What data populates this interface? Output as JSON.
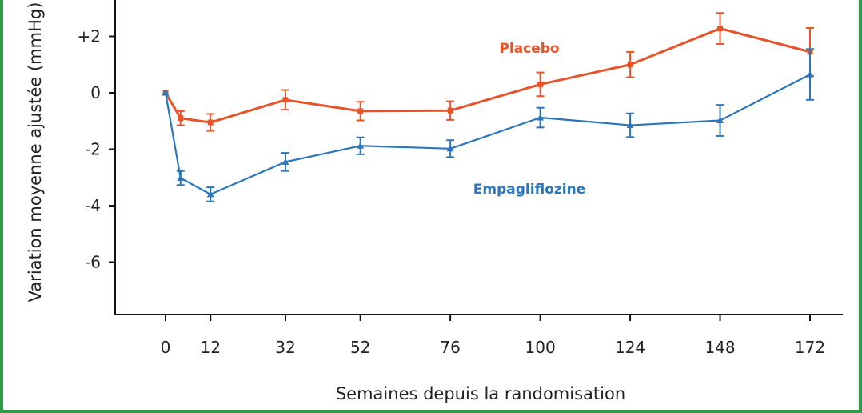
{
  "colors": {
    "frame": "#2e9b48",
    "placebo": "#e8542a",
    "empagliflozin": "#2a77bb",
    "axis": "#111111"
  },
  "chart_data": {
    "type": "line",
    "title": "",
    "xlabel": "Semaines depuis la randomisation",
    "ylabel": "Variation moyenne ajustée (mmHg)",
    "xlim": [
      -10,
      180
    ],
    "ylim": [
      -7.8,
      3.3
    ],
    "x_ticks": [
      0,
      12,
      32,
      52,
      76,
      100,
      124,
      148,
      172
    ],
    "x_tick_labels": [
      "0",
      "12",
      "32",
      "52",
      "76",
      "100",
      "124",
      "148",
      "172"
    ],
    "y_ticks": [
      2,
      0,
      -2,
      -4,
      -6
    ],
    "y_tick_labels": [
      "+2",
      "0",
      "-2",
      "-4",
      "-6"
    ],
    "series": [
      {
        "name": "Placebo",
        "color": "#e8542a",
        "marker": "square",
        "x": [
          0,
          4,
          12,
          32,
          52,
          76,
          100,
          124,
          148,
          172
        ],
        "y": [
          0,
          -0.9,
          -1.05,
          -0.25,
          -0.65,
          -0.63,
          0.3,
          1.0,
          2.28,
          1.45
        ],
        "err": [
          0,
          0.25,
          0.3,
          0.35,
          0.33,
          0.33,
          0.42,
          0.45,
          0.55,
          0.85
        ]
      },
      {
        "name": "Empagliflozine",
        "color": "#2a77bb",
        "marker": "triangle",
        "x": [
          0,
          4,
          12,
          32,
          52,
          76,
          100,
          124,
          148,
          172
        ],
        "y": [
          0,
          -3.02,
          -3.6,
          -2.45,
          -1.88,
          -1.98,
          -0.88,
          -1.15,
          -0.98,
          0.65
        ],
        "err": [
          0,
          0.25,
          0.25,
          0.32,
          0.3,
          0.3,
          0.35,
          0.42,
          0.55,
          0.9
        ]
      }
    ]
  }
}
